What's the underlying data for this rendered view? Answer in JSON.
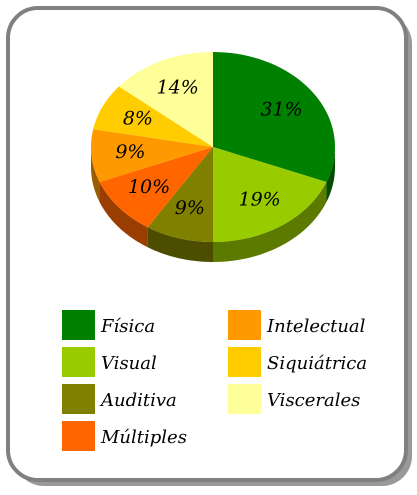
{
  "chart_data": {
    "type": "pie3d",
    "categories": [
      "Física",
      "Visual",
      "Auditiva",
      "Múltiples",
      "Intelectual",
      "Siquiátrica",
      "Viscerales"
    ],
    "values": [
      31,
      19,
      9,
      10,
      9,
      8,
      14
    ],
    "value_labels": [
      "31%",
      "19%",
      "9%",
      "10%",
      "9%",
      "8%",
      "14%"
    ],
    "colors": [
      "#008000",
      "#99cc00",
      "#808000",
      "#ff6600",
      "#ff9900",
      "#ffcc00",
      "#ffff99"
    ]
  }
}
